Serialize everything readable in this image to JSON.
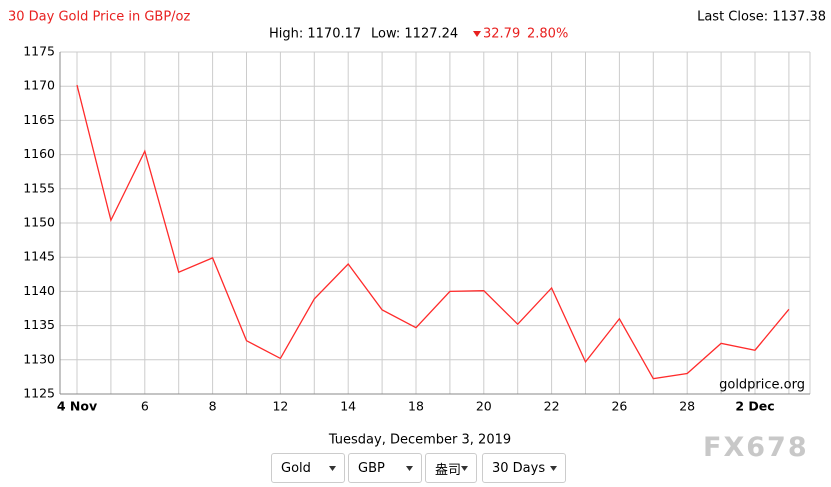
{
  "header": {
    "title": "30 Day Gold Price in GBP/oz",
    "last_close": "Last Close: 1137.38",
    "high": "High: 1170.17",
    "low": "Low: 1127.24",
    "change": "32.79",
    "change_pct": "2.80%"
  },
  "chart_data": {
    "type": "line",
    "color": "#ff2b2b",
    "categories": [
      "4 Nov",
      null,
      "6",
      null,
      "8",
      null,
      "12",
      null,
      "14",
      null,
      "18",
      null,
      "20",
      null,
      "22",
      null,
      "26",
      null,
      "28",
      null,
      "2 Dec",
      null
    ],
    "values": [
      1170.17,
      1150.4,
      1160.5,
      1142.8,
      1144.9,
      1132.8,
      1130.2,
      1138.9,
      1144.0,
      1137.3,
      1134.7,
      1140.0,
      1140.1,
      1135.2,
      1140.5,
      1129.7,
      1136.0,
      1127.24,
      1128.0,
      1132.4,
      1131.4,
      1137.38
    ],
    "ylim": [
      1125,
      1175
    ],
    "yticks": [
      1125,
      1130,
      1135,
      1140,
      1145,
      1150,
      1155,
      1160,
      1165,
      1170,
      1175
    ],
    "grid": true
  },
  "credit": "goldprice.org",
  "footer": {
    "date": "Tuesday, December 3, 2019",
    "selects": [
      "Gold",
      "GBP",
      "盎司",
      "30 Days"
    ]
  },
  "watermark": "FX678"
}
